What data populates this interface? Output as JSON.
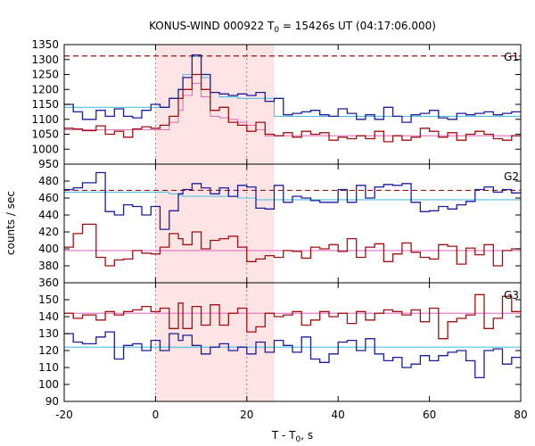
{
  "chart_data": {
    "type": "line",
    "title_main": "KONUS-WIND 000922 T",
    "title_sub": "0",
    "title_rest": " = 15426s UT (04:17:06.000)",
    "xlabel_main": "T - T",
    "xlabel_sub": "0",
    "xlabel_rest": ", s",
    "ylabel": "counts / sec",
    "xlim": [
      -20,
      80
    ],
    "x_ticks": [
      "-20",
      "0",
      "20",
      "40",
      "60",
      "80"
    ],
    "x_tick_values": [
      -20,
      0,
      20,
      40,
      60,
      80
    ],
    "shaded_interval": [
      0,
      26
    ],
    "colors": {
      "blue": "#1c1c9c",
      "red": "#a01010",
      "cyan": "#50c0e0",
      "pink": "#e070c0",
      "dashed": "#a01010",
      "shade": "#fde4e4"
    },
    "bin_edges": [
      -20,
      -18,
      -16,
      -13,
      -11,
      -9,
      -7,
      -5,
      -3,
      -1,
      1,
      3,
      5,
      6,
      8,
      10,
      12,
      14,
      16,
      18,
      20,
      22,
      24,
      26,
      28,
      30,
      32,
      34,
      36,
      38,
      40,
      42,
      44,
      46,
      48,
      50,
      52,
      54,
      56,
      58,
      60,
      62,
      64,
      66,
      68,
      70,
      72,
      74,
      76,
      78,
      80
    ],
    "panels": [
      {
        "label": "G1",
        "ylim": [
          950,
          1350
        ],
        "y_ticks": [
          "950",
          "1000",
          "1050",
          "1100",
          "1150",
          "1200",
          "1250",
          "1300",
          "1350"
        ],
        "y_tick_values": [
          950,
          1000,
          1050,
          1100,
          1150,
          1200,
          1250,
          1300,
          1350
        ],
        "dashed_level": 1312,
        "blue": [
          1150,
          1125,
          1100,
          1130,
          1110,
          1135,
          1110,
          1105,
          1130,
          1150,
          1140,
          1170,
          1200,
          1240,
          1315,
          1250,
          1190,
          1185,
          1180,
          1185,
          1180,
          1190,
          1160,
          1170,
          1115,
          1120,
          1125,
          1130,
          1115,
          1110,
          1135,
          1120,
          1100,
          1115,
          1100,
          1140,
          1110,
          1090,
          1115,
          1120,
          1130,
          1105,
          1100,
          1120,
          1115,
          1120,
          1125,
          1115,
          1120,
          1125
        ],
        "red": [
          1070,
          1068,
          1062,
          1078,
          1050,
          1060,
          1040,
          1068,
          1075,
          1070,
          1080,
          1110,
          1170,
          1200,
          1250,
          1200,
          1130,
          1140,
          1090,
          1080,
          1060,
          1090,
          1050,
          1045,
          1055,
          1040,
          1060,
          1050,
          1055,
          1030,
          1040,
          1035,
          1045,
          1035,
          1060,
          1025,
          1045,
          1030,
          1040,
          1070,
          1060,
          1040,
          1055,
          1030,
          1050,
          1060,
          1050,
          1035,
          1030,
          1045
        ],
        "blue_model": [
          1140,
          1140,
          1140,
          1140,
          1140,
          1140,
          1140,
          1140,
          1140,
          1140,
          1140,
          1170,
          1200,
          1250,
          1310,
          1240,
          1190,
          1175,
          1175,
          1170,
          1170,
          1170,
          1170,
          1110,
          1110,
          1110,
          1110,
          1110,
          1110,
          1110,
          1110,
          1110,
          1110,
          1110,
          1110,
          1110,
          1110,
          1110,
          1110,
          1110,
          1110,
          1110,
          1110,
          1110,
          1110,
          1110,
          1110,
          1110,
          1110,
          1110
        ],
        "red_model": [
          1065,
          1065,
          1065,
          1065,
          1065,
          1065,
          1065,
          1065,
          1065,
          1065,
          1065,
          1090,
          1130,
          1180,
          1220,
          1175,
          1110,
          1105,
          1100,
          1090,
          1080,
          1065,
          1045,
          1045,
          1045,
          1045,
          1045,
          1045,
          1045,
          1045,
          1045,
          1045,
          1045,
          1045,
          1045,
          1045,
          1045,
          1045,
          1045,
          1045,
          1045,
          1045,
          1045,
          1045,
          1045,
          1045,
          1045,
          1045,
          1045,
          1045
        ]
      },
      {
        "label": "G2",
        "ylim": [
          360,
          500
        ],
        "y_ticks": [
          "360",
          "380",
          "400",
          "420",
          "440",
          "460",
          "480"
        ],
        "y_tick_values": [
          360,
          380,
          400,
          420,
          440,
          460,
          480
        ],
        "dashed_level": 469,
        "blue": [
          470,
          472,
          478,
          490,
          444,
          440,
          452,
          450,
          440,
          450,
          423,
          445,
          465,
          470,
          477,
          472,
          465,
          472,
          462,
          475,
          473,
          448,
          447,
          475,
          455,
          462,
          460,
          457,
          455,
          455,
          470,
          455,
          475,
          460,
          473,
          476,
          475,
          477,
          455,
          444,
          445,
          450,
          447,
          452,
          456,
          470,
          473,
          467,
          470,
          466
        ],
        "red": [
          402,
          418,
          429,
          390,
          380,
          387,
          388,
          398,
          395,
          394,
          402,
          418,
          412,
          405,
          420,
          400,
          410,
          412,
          415,
          402,
          385,
          388,
          392,
          390,
          398,
          397,
          389,
          402,
          400,
          405,
          397,
          412,
          390,
          402,
          406,
          385,
          394,
          407,
          396,
          390,
          388,
          405,
          403,
          382,
          401,
          393,
          405,
          380,
          398,
          400
        ],
        "blue_model": [
          467,
          467,
          467,
          467,
          467,
          467,
          467,
          467,
          467,
          467,
          467,
          465,
          463,
          462,
          462,
          462,
          462,
          462,
          462,
          460,
          460,
          458,
          458,
          458,
          458,
          458,
          458,
          458,
          458,
          458,
          458,
          458,
          458,
          458,
          458,
          458,
          458,
          458,
          458,
          458,
          458,
          458,
          458,
          458,
          458,
          458,
          458,
          458,
          458,
          458
        ],
        "red_model": [
          398,
          398,
          398,
          398,
          398,
          398,
          398,
          398,
          398,
          398,
          398,
          398,
          398,
          398,
          398,
          398,
          398,
          398,
          398,
          398,
          398,
          398,
          398,
          398,
          398,
          398,
          398,
          398,
          398,
          398,
          398,
          398,
          398,
          398,
          398,
          398,
          398,
          398,
          398,
          398,
          398,
          398,
          398,
          398,
          398,
          398,
          398,
          398,
          398,
          398
        ]
      },
      {
        "label": "G3",
        "ylim": [
          90,
          160
        ],
        "y_ticks": [
          "90",
          "100",
          "110",
          "120",
          "130",
          "140",
          "150"
        ],
        "y_tick_values": [
          90,
          100,
          110,
          120,
          130,
          140,
          150
        ],
        "blue": [
          130,
          125,
          124,
          128,
          131,
          115,
          123,
          124,
          120,
          126,
          120,
          130,
          126,
          129,
          123,
          118,
          122,
          124,
          120,
          122,
          118,
          125,
          119,
          126,
          123,
          119,
          128,
          115,
          113,
          118,
          125,
          126,
          120,
          127,
          118,
          114,
          116,
          110,
          112,
          117,
          114,
          117,
          119,
          120,
          114,
          104,
          120,
          121,
          112,
          116
        ],
        "red": [
          142,
          139,
          141,
          138,
          143,
          141,
          143,
          144,
          146,
          143,
          145,
          133,
          148,
          133,
          146,
          135,
          147,
          135,
          142,
          145,
          131,
          134,
          142,
          140,
          141,
          143,
          135,
          138,
          143,
          140,
          142,
          136,
          143,
          138,
          142,
          144,
          143,
          141,
          144,
          137,
          145,
          127,
          137,
          139,
          141,
          153,
          133,
          139,
          152,
          143
        ],
        "blue_model": [
          122,
          122,
          122,
          122,
          122,
          122,
          122,
          122,
          122,
          122,
          122,
          122,
          122,
          122,
          122,
          122,
          122,
          122,
          122,
          122,
          122,
          122,
          122,
          122,
          122,
          122,
          122,
          122,
          122,
          122,
          122,
          122,
          122,
          122,
          122,
          122,
          122,
          122,
          122,
          122,
          122,
          122,
          122,
          122,
          122,
          122,
          122,
          122,
          122,
          122
        ],
        "red_model": [
          142,
          142,
          142,
          142,
          142,
          142,
          142,
          142,
          142,
          142,
          142,
          142,
          142,
          142,
          142,
          142,
          142,
          142,
          142,
          142,
          142,
          142,
          142,
          142,
          142,
          142,
          142,
          142,
          142,
          142,
          142,
          142,
          142,
          142,
          142,
          142,
          142,
          142,
          142,
          142,
          142,
          142,
          142,
          142,
          142,
          142,
          142,
          142,
          142,
          142
        ]
      }
    ]
  }
}
